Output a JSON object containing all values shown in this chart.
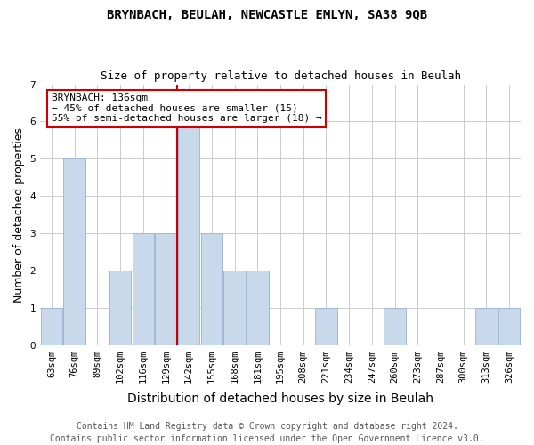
{
  "title": "BRYNBACH, BEULAH, NEWCASTLE EMLYN, SA38 9QB",
  "subtitle": "Size of property relative to detached houses in Beulah",
  "xlabel": "Distribution of detached houses by size in Beulah",
  "ylabel": "Number of detached properties",
  "categories": [
    "63sqm",
    "76sqm",
    "89sqm",
    "102sqm",
    "116sqm",
    "129sqm",
    "142sqm",
    "155sqm",
    "168sqm",
    "181sqm",
    "195sqm",
    "208sqm",
    "221sqm",
    "234sqm",
    "247sqm",
    "260sqm",
    "273sqm",
    "287sqm",
    "300sqm",
    "313sqm",
    "326sqm"
  ],
  "values": [
    1,
    5,
    0,
    2,
    3,
    3,
    6,
    3,
    2,
    2,
    0,
    0,
    1,
    0,
    0,
    1,
    0,
    0,
    0,
    1,
    1
  ],
  "bar_color": "#c9d9ec",
  "bar_edge_color": "#a0b8d8",
  "annotation_line": "BRYNBACH: 136sqm",
  "annotation_line2": "← 45% of detached houses are smaller (15)",
  "annotation_line3": "55% of semi-detached houses are larger (18) →",
  "annotation_box_color": "#ffffff",
  "annotation_box_edge_color": "#cc0000",
  "ylim": [
    0,
    7
  ],
  "yticks": [
    0,
    1,
    2,
    3,
    4,
    5,
    6,
    7
  ],
  "footnote": "Contains HM Land Registry data © Crown copyright and database right 2024.\nContains public sector information licensed under the Open Government Licence v3.0.",
  "title_fontsize": 10,
  "subtitle_fontsize": 9,
  "xlabel_fontsize": 10,
  "ylabel_fontsize": 9,
  "tick_fontsize": 7.5,
  "annotation_fontsize": 8,
  "footnote_fontsize": 7,
  "background_color": "#ffffff",
  "grid_color": "#cccccc"
}
